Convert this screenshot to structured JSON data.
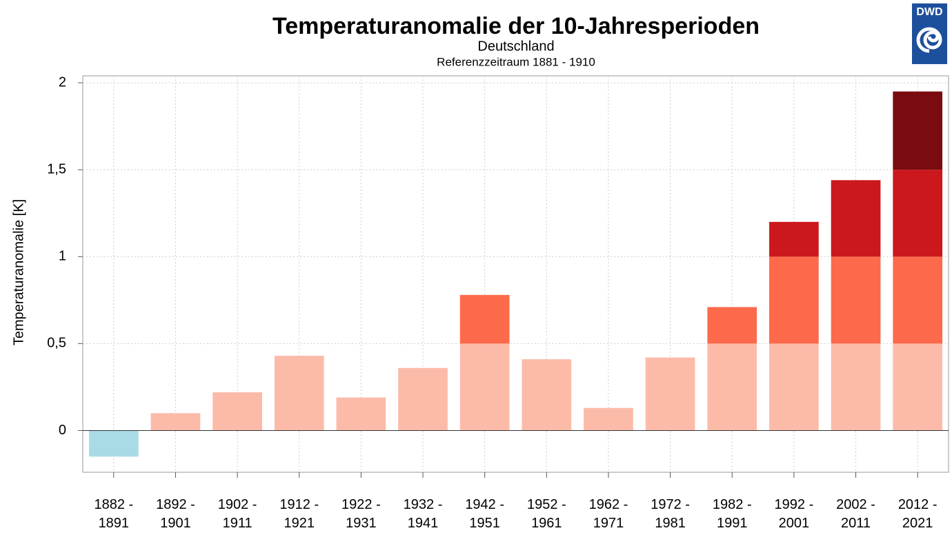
{
  "chart_data": {
    "type": "bar",
    "title": "Temperaturanomalie der 10-Jahresperioden",
    "subtitle": "Deutschland",
    "note": "Referenzzeitraum 1881 - 1910",
    "y_label": "Temperaturanomalie [K]",
    "logo": "DWD",
    "categories": [
      "1882 - 1891",
      "1892 - 1901",
      "1902 - 1911",
      "1912 - 1921",
      "1922 - 1931",
      "1932 - 1941",
      "1942 - 1951",
      "1952 - 1961",
      "1962 - 1971",
      "1972 - 1981",
      "1982 - 1991",
      "1992 - 2001",
      "2002 - 2011",
      "2012 - 2021"
    ],
    "values": [
      -0.15,
      0.1,
      0.22,
      0.43,
      0.19,
      0.36,
      0.78,
      0.41,
      0.13,
      0.42,
      0.71,
      1.2,
      1.44,
      1.95
    ],
    "band_colors": [
      "#fcbba9",
      "#fc6a4b",
      "#cb181d",
      "#7a0b10"
    ],
    "negative_color": "#a8dbe6",
    "ylim": [
      -0.24,
      2.04
    ],
    "yticks": [
      0,
      {
        "value": 0.5,
        "label": "0,5"
      },
      1,
      {
        "value": 1.5,
        "label": "1,5"
      },
      2
    ],
    "grid": true
  }
}
